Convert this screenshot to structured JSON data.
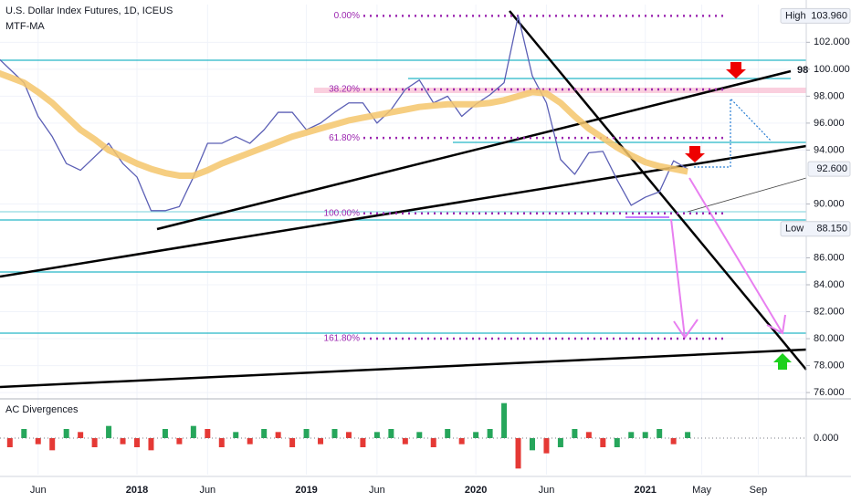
{
  "chart_data": [
    {
      "type": "line",
      "title": "U.S. Dollar Index Futures, 1D, ICEUS",
      "x": [
        2,
        3,
        4,
        5,
        6,
        7,
        8,
        9,
        10,
        11,
        12,
        13,
        14,
        15,
        16,
        17,
        18,
        19,
        20,
        21,
        22,
        23,
        24,
        25,
        26,
        27,
        28,
        29,
        30,
        31,
        32,
        33,
        34,
        35,
        36,
        37,
        38,
        39,
        40,
        41,
        42,
        43,
        44,
        45,
        46,
        47,
        48,
        49,
        50,
        51
      ],
      "series": [
        {
          "color": "#5b5fb5",
          "values": [
            101,
            100,
            99,
            96.5,
            95,
            93,
            92.5,
            93.5,
            94.5,
            93,
            92,
            89.5,
            89.5,
            89.8,
            92,
            94.5,
            94.5,
            95,
            94.5,
            95.5,
            96.8,
            96.8,
            95.5,
            96,
            96.8,
            97.5,
            97.5,
            96,
            97,
            98.5,
            99.2,
            97.5,
            98,
            96.5,
            97.4,
            98.1,
            99,
            103.96,
            99.5,
            97.5,
            93.3,
            92.2,
            93.8,
            93.9,
            91.8,
            89.9,
            90.5,
            90.9,
            93.2,
            92.6
          ]
        },
        {
          "name": "MTF-MA",
          "color": "#f5c66b",
          "values": [
            99.8,
            99.4,
            99,
            98.3,
            97.5,
            96.5,
            95.5,
            94.8,
            94,
            93.5,
            93,
            92.6,
            92.3,
            92.1,
            92.1,
            92.5,
            93,
            93.4,
            93.8,
            94.2,
            94.6,
            95,
            95.3,
            95.6,
            95.9,
            96.2,
            96.4,
            96.6,
            96.8,
            97,
            97.2,
            97.3,
            97.4,
            97.4,
            97.4,
            97.5,
            97.7,
            98,
            98.3,
            98.2,
            97.5,
            96.5,
            95.6,
            94.9,
            94.2,
            93.6,
            93.1,
            92.8,
            92.6,
            92.4
          ]
        }
      ],
      "xlim": [
        2.3,
        59.4
      ],
      "xticks": [
        {
          "value": 5,
          "label": "Jun"
        },
        {
          "value": 12,
          "label": "2018"
        },
        {
          "value": 17,
          "label": "Jun"
        },
        {
          "value": 24,
          "label": "2019"
        },
        {
          "value": 29,
          "label": "Jun"
        },
        {
          "value": 36,
          "label": "2020"
        },
        {
          "value": 41,
          "label": "Jun"
        },
        {
          "value": 48,
          "label": "2021"
        },
        {
          "value": 52,
          "label": "May"
        },
        {
          "value": 56,
          "label": "Sep"
        }
      ],
      "ylim": [
        75.6,
        104.8
      ],
      "yticks": [
        {
          "value": 76,
          "label": "76.000"
        },
        {
          "value": 78,
          "label": "78.000"
        },
        {
          "value": 80,
          "label": "80.000"
        },
        {
          "value": 82,
          "label": "82.000"
        },
        {
          "value": 84,
          "label": "84.000"
        },
        {
          "value": 86,
          "label": "86.000"
        },
        {
          "value": 90,
          "label": "90.000"
        },
        {
          "value": 94,
          "label": "94.000"
        },
        {
          "value": 96,
          "label": "96.000"
        },
        {
          "value": 98,
          "label": "98.000"
        },
        {
          "value": 100,
          "label": "100.000"
        },
        {
          "value": 102,
          "label": "102.000"
        }
      ],
      "grid": true,
      "fib_levels": [
        {
          "label": "0.00%",
          "value": 103.96
        },
        {
          "label": "38.20%",
          "value": 98.5
        },
        {
          "label": "61.80%",
          "value": 94.9
        },
        {
          "label": "100.00%",
          "value": 89.3
        },
        {
          "label": "161.80%",
          "value": 80
        }
      ],
      "price_markers": [
        {
          "label": "High",
          "value": 103.96,
          "value_label": "103.960"
        },
        {
          "value": 92.6,
          "value_label": "92.600"
        },
        {
          "label": "Low",
          "value": 88.15,
          "value_label": "88.150"
        }
      ],
      "cut_label": "98"
    },
    {
      "type": "bar",
      "title": "AC Divergences",
      "values": [
        0.2,
        -0.3,
        0.3,
        -0.2,
        -0.4,
        0.3,
        0.2,
        -0.3,
        0.4,
        -0.2,
        -0.3,
        -0.4,
        0.3,
        -0.2,
        0.4,
        0.3,
        -0.3,
        0.2,
        -0.2,
        0.3,
        0.2,
        -0.3,
        0.3,
        -0.2,
        0.3,
        0.2,
        -0.3,
        0.2,
        0.3,
        -0.2,
        0.2,
        -0.3,
        0.3,
        -0.2,
        0.2,
        0.3,
        1.15,
        -1.0,
        -0.4,
        -0.5,
        -0.3,
        0.3,
        0.2,
        -0.3,
        -0.3,
        0.2,
        0.2,
        0.3,
        -0.2,
        0.2
      ],
      "ylim": [
        -1.2,
        1.2
      ],
      "yticks": [
        {
          "value": 0,
          "label": "0.000"
        }
      ]
    }
  ]
}
